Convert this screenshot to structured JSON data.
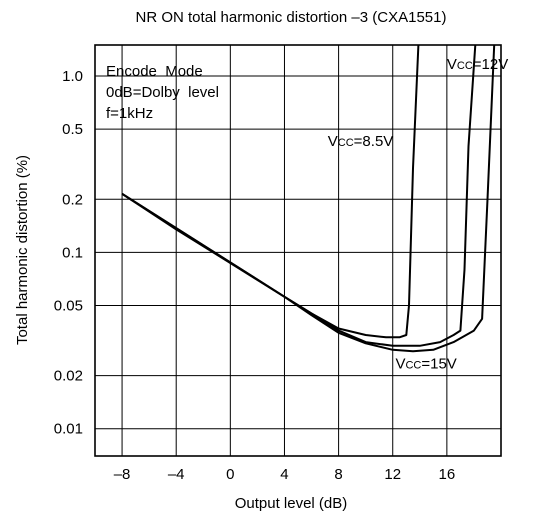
{
  "chart_data": {
    "type": "line",
    "title": "NR ON total harmonic distortion –3 (CXA1551)",
    "xlabel": "Output level (dB)",
    "ylabel": "Total harmonic distortion (%)",
    "xlim": [
      -10,
      20
    ],
    "ylim": [
      0.007,
      1.5
    ],
    "y_scale": "log",
    "grid": true,
    "x_ticks": [
      -8,
      -4,
      0,
      4,
      8,
      12,
      16
    ],
    "x_tick_labels": [
      "–8",
      "–4",
      "0",
      "4",
      "8",
      "12",
      "16"
    ],
    "y_ticks": [
      0.01,
      0.02,
      0.05,
      0.1,
      0.2,
      0.5,
      1.0
    ],
    "y_tick_labels": [
      "0.01",
      "0.02",
      "0.05",
      "0.1",
      "0.2",
      "0.5",
      "1.0"
    ],
    "notes": [
      "Encode  Mode",
      "0dB=Dolby  level",
      "f=1kHz"
    ],
    "series": [
      {
        "name": "VCC=8.5V",
        "label_main": "V",
        "label_sub": "CC",
        "label_rest": "=8.5V",
        "x": [
          -8,
          -4,
          0,
          4,
          6,
          8,
          10,
          11.5,
          12.5,
          13.0,
          13.2,
          13.5,
          13.9
        ],
        "y": [
          0.215,
          0.135,
          0.087,
          0.056,
          0.045,
          0.037,
          0.034,
          0.033,
          0.033,
          0.034,
          0.05,
          0.3,
          1.5
        ]
      },
      {
        "name": "VCC=12V",
        "label_main": "V",
        "label_sub": "CC",
        "label_rest": "=12V",
        "x": [
          -8,
          4,
          6,
          8,
          10,
          12,
          14,
          15.5,
          16.5,
          17.0,
          17.3,
          17.6,
          18.1
        ],
        "y": [
          0.215,
          0.056,
          0.045,
          0.036,
          0.031,
          0.0295,
          0.0295,
          0.031,
          0.034,
          0.036,
          0.08,
          0.4,
          1.5
        ]
      },
      {
        "name": "VCC=15V",
        "label_main": "V",
        "label_sub": "CC",
        "label_rest": "=15V",
        "x": [
          -8,
          4,
          6,
          8,
          10,
          12,
          13.5,
          15,
          16.5,
          18,
          18.6,
          19.0,
          19.5
        ],
        "y": [
          0.215,
          0.056,
          0.044,
          0.035,
          0.0305,
          0.028,
          0.0275,
          0.028,
          0.031,
          0.036,
          0.042,
          0.2,
          1.5
        ]
      }
    ]
  }
}
